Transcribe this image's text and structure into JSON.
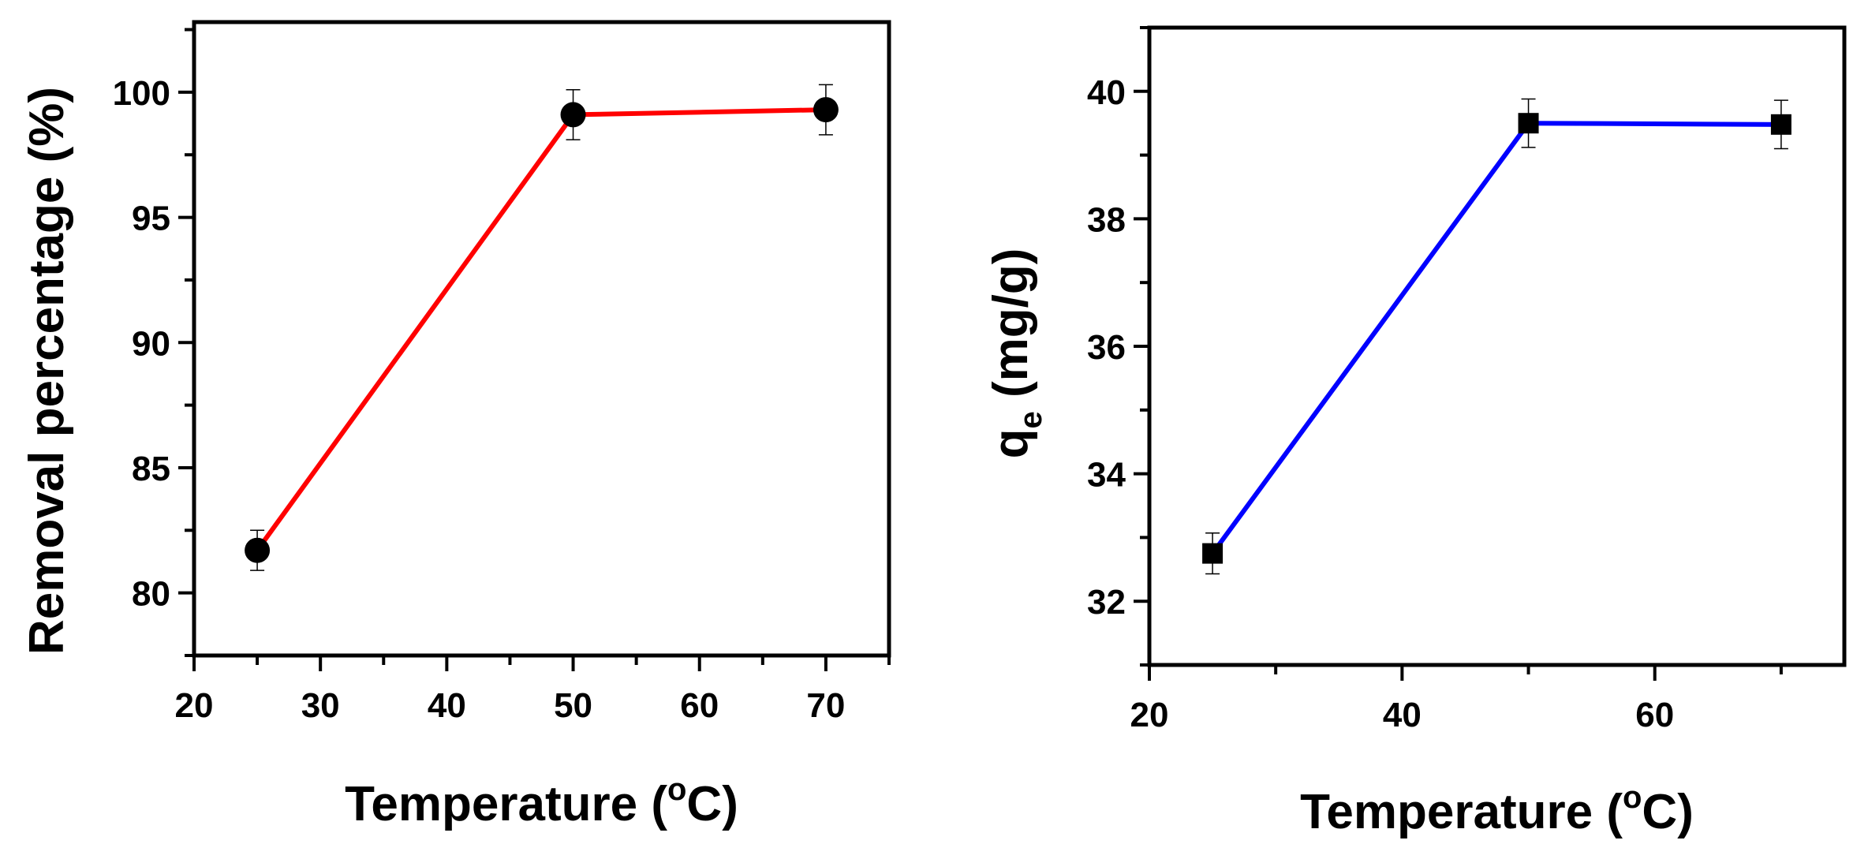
{
  "chart_data": [
    {
      "type": "line",
      "title": "",
      "xlabel": "Temperature (°C)",
      "xlabel_main": "Temperature (",
      "xlabel_sup": "o",
      "xlabel_tail": "C)",
      "ylabel": "Removal percentage (%)",
      "xlim": [
        20,
        75
      ],
      "ylim": [
        77.5,
        102.8
      ],
      "xticks": [
        20,
        30,
        40,
        50,
        60,
        70
      ],
      "xtick_labels": [
        "20",
        "30",
        "40",
        "50",
        "60",
        "70"
      ],
      "xminor_step": 5,
      "yticks": [
        80,
        85,
        90,
        95,
        100
      ],
      "ytick_labels": [
        "80",
        "85",
        "90",
        "95",
        "100"
      ],
      "yminor_step": 2.5,
      "grid": false,
      "series": [
        {
          "name": "Removal percentage",
          "color": "#ff0000",
          "marker": "circle",
          "x": [
            25,
            50,
            70
          ],
          "y": [
            81.7,
            99.1,
            99.3
          ],
          "yerr": [
            0.8,
            1.0,
            1.0
          ]
        }
      ]
    },
    {
      "type": "line",
      "title": "",
      "xlabel": "Temperature (°C)",
      "xlabel_main": "Temperature (",
      "xlabel_sup": "o",
      "xlabel_tail": "C)",
      "ylabel": "qe (mg/g)",
      "ylabel_main": "q",
      "ylabel_sub": "e",
      "ylabel_tail": " (mg/g)",
      "xlim": [
        20,
        75
      ],
      "ylim": [
        31,
        41
      ],
      "xticks": [
        20,
        40,
        60
      ],
      "xtick_labels": [
        "20",
        "40",
        "60"
      ],
      "xminor_step": 10,
      "yticks": [
        32,
        34,
        36,
        38,
        40
      ],
      "ytick_labels": [
        "32",
        "34",
        "36",
        "38",
        "40"
      ],
      "yminor_step": 1,
      "grid": false,
      "series": [
        {
          "name": "qe",
          "color": "#0000ff",
          "marker": "square",
          "x": [
            25,
            50,
            70
          ],
          "y": [
            32.75,
            39.5,
            39.48
          ],
          "yerr": [
            0.32,
            0.38,
            0.38
          ]
        }
      ]
    }
  ]
}
